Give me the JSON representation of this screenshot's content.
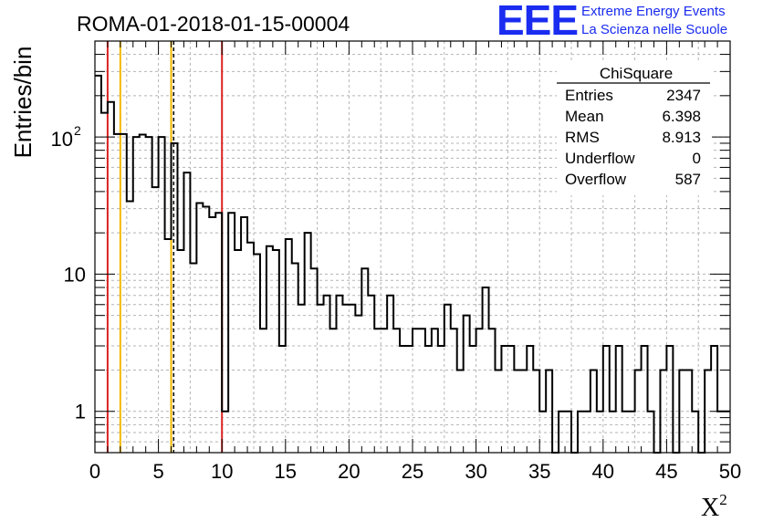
{
  "chart_data": {
    "type": "histogram",
    "title": "ROMA-01-2018-01-15-00004",
    "xlabel": "X",
    "xlabel_superscript": "2",
    "ylabel": "Entries/bin",
    "xlim": [
      0,
      50
    ],
    "ylim": [
      0.5,
      500
    ],
    "yscale": "log",
    "grid": true,
    "x_ticks": [
      0,
      5,
      10,
      15,
      20,
      25,
      30,
      35,
      40,
      45,
      50
    ],
    "x_tick_labels": [
      "0",
      "5",
      "10",
      "15",
      "20",
      "25",
      "30",
      "35",
      "40",
      "45",
      "50"
    ],
    "y_ticks": [
      1,
      10,
      100
    ],
    "y_tick_labels": [
      "1",
      "10",
      "10",
      "2"
    ],
    "bin_width": 0.5,
    "bin_counts": [
      280,
      150,
      180,
      105,
      105,
      34,
      100,
      104,
      100,
      43,
      100,
      18,
      90,
      15,
      55,
      12,
      33,
      31,
      26,
      28,
      1,
      28,
      15,
      26,
      17,
      14,
      4,
      16,
      15,
      3,
      18,
      12,
      6,
      20,
      11,
      6,
      7,
      4,
      7,
      6,
      6,
      5,
      11,
      7,
      4,
      4,
      7,
      4,
      3,
      3,
      4,
      4,
      3,
      4,
      3,
      6,
      4,
      2,
      5,
      3,
      4,
      8,
      4,
      2,
      3,
      3,
      2,
      2,
      3,
      2,
      1,
      2,
      0.5,
      1,
      1,
      0.5,
      1,
      1,
      2,
      1,
      3,
      1,
      3,
      1,
      1,
      2,
      3,
      1,
      0.5,
      2,
      3,
      0.5,
      2,
      2,
      1,
      0.5,
      2,
      3,
      1,
      1
    ],
    "vertical_lines": [
      {
        "x": 1.0,
        "color": "#dd2222",
        "style": "solid"
      },
      {
        "x": 2.0,
        "color": "#f2b800",
        "style": "solid"
      },
      {
        "x": 6.0,
        "color": "#f2b800",
        "style": "solid"
      },
      {
        "x": 6.2,
        "color": "#000000",
        "style": "dashed"
      },
      {
        "x": 10.0,
        "color": "#dd2222",
        "style": "solid"
      }
    ],
    "stats_box": {
      "title": "ChiSquare",
      "rows": [
        {
          "label": "Entries",
          "value": "2347"
        },
        {
          "label": "Mean",
          "value": "6.398"
        },
        {
          "label": "RMS",
          "value": "8.913"
        },
        {
          "label": "Underflow",
          "value": "0"
        },
        {
          "label": "Overflow",
          "value": "587"
        }
      ]
    }
  },
  "logo": {
    "mark": "EEE",
    "line1": "Extreme Energy Events",
    "line2": "La Scienza nelle Scuole"
  }
}
